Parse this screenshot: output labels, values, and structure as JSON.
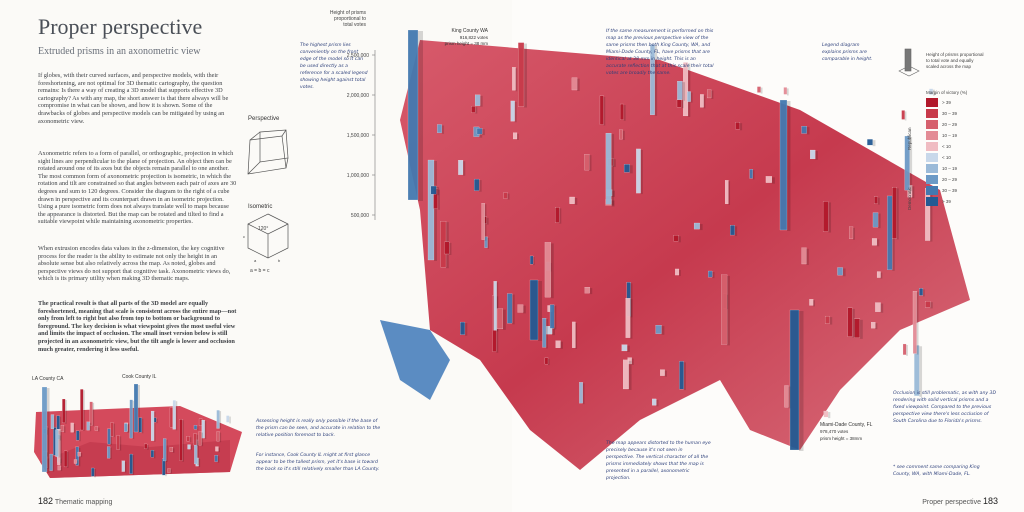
{
  "left_page": {
    "title": "Proper perspective",
    "subtitle": "Extruded prisms in an axonometric view",
    "paragraphs": [
      "If globes, with their curved surfaces, and perspective models, with their foreshortening, are not optimal for 3D thematic cartography, the question remains: Is there a way of creating a 3D model that supports effective 3D cartography? As with any map, the short answer is that there always will be compromise in what can be shown, and how it is shown. Some of the drawbacks of globes and perspective models can be mitigated by using an axonometric view.",
      "Axonometric refers to a form of parallel, or orthographic, projection in which sight lines are perpendicular to the plane of projection. An object then can be rotated around one of its axes but the objects remain parallel to one another. The most common form of axonometric projection is isometric, in which the rotation and tilt are constrained so that angles between each pair of axes are 30 degrees and sum to 120 degrees. Consider the diagram to the right of a cube drawn in perspective and its counterpart drawn in an isometric projection. Using a pure isometric form does not always translate well to maps because the appearance is distorted. But the map can be rotated and tilted to find a suitable viewpoint while maintaining axonometric properties.",
      "When extrusion encodes data values in the z-dimension, the key cognitive process for the reader is the ability to estimate not only the height in an absolute sense but also relatively across the map. As noted, globes and perspective views do not support that cognitive task. Axonometric views do, which is its primary utility when making 3D thematic maps.",
      "The practical result is that all parts of the 3D model are equally foreshortened, meaning that scale is consistent across the entire map—not only from left to right but also from top to bottom or background to foreground. The key decision is what viewpoint gives the most useful view and limits the impact of occlusion. The small inset version below is still projected in an axonometric view, but the tilt angle is lower and occlusion much greater, rendering it less useful."
    ],
    "diagram": {
      "perspective": "Perspective",
      "isometric": "Isometric",
      "angle": "120°",
      "axes": "a = b = c",
      "a": "a",
      "b": "b",
      "c": "c"
    },
    "inset": {
      "la": "LA County CA",
      "cook": "Cook County IL"
    },
    "notes": [
      "Assessing height is really only possible if the base of the prism can be seen, and accurate in relation to the relative position foremost to back.",
      "For instance, Cook County IL might at first glance appear to be the tallest prism, yet it's base is toward the back so it's still relatively smaller than LA County."
    ],
    "footer": {
      "number": "182",
      "section": "Thematic mapping"
    }
  },
  "right_page": {
    "scale": {
      "title": "Height of prisms proportional to total votes",
      "ticks": [
        "2,500,000",
        "2,000,000",
        "1,500,000",
        "1,000,000",
        "500,000"
      ]
    },
    "king": {
      "name": "King County WA",
      "votes": "916,822 votes",
      "height": "prism height = 38 mm"
    },
    "notes": {
      "tallest": "The highest prism lies conveniently on the front edge of the model so it can be used directly as a reference for a scaled legend showing height against total votes.",
      "measurement": "If the same measurement is performed on this map as the previous perspective view of the same prisms then both King County, WA, and Miami-Dade County, FL, have prisms that are identical at 38 mm in height. This is an accurate reflection that at this scale their total votes are broadly the same.",
      "legend_note": "Legend diagram explains prisms are comparable in height.",
      "distorted": "The map appears distorted to the human eye precisely because it's not seen in perspective. The vertical character of all the prisms immediately shows that the map is presented in a parallel, axonometric projection.",
      "occlusion": "Occlusion is still problematic, as with any 3D rendering with solid vertical prisms and a fixed viewpoint. Compared to the previous perspective view there's less occlusion of South Carolina due to Florida's prisms.",
      "compare": "* see comment same comparing King County, WA, with Miami-Dade, FL."
    },
    "legend_diagram": "Height of prisms proportional to total vote and equally scaled across the map",
    "legend": {
      "title": "Margin of victory (%)",
      "republican": "Republican",
      "democratic": "Democratic",
      "classes": [
        {
          "label": "> 39",
          "color": "#b2182b"
        },
        {
          "label": "30 – 39",
          "color": "#c83a4a"
        },
        {
          "label": "20 – 29",
          "color": "#d6606d"
        },
        {
          "label": "10 – 19",
          "color": "#e38b95"
        },
        {
          "label": "< 10",
          "color": "#f0bcc2"
        },
        {
          "label": "< 10",
          "color": "#c8d8ea"
        },
        {
          "label": "10 – 19",
          "color": "#9bbad8"
        },
        {
          "label": "20 – 29",
          "color": "#6c9ac6"
        },
        {
          "label": "30 – 39",
          "color": "#4379b0"
        },
        {
          "label": "> 39",
          "color": "#235a93"
        }
      ]
    },
    "miami": {
      "name": "Miami-Dade County, FL",
      "votes": "978,470 votes",
      "height": "prism height = 38mm"
    },
    "footer": {
      "section": "Proper perspective",
      "number": "183"
    }
  }
}
